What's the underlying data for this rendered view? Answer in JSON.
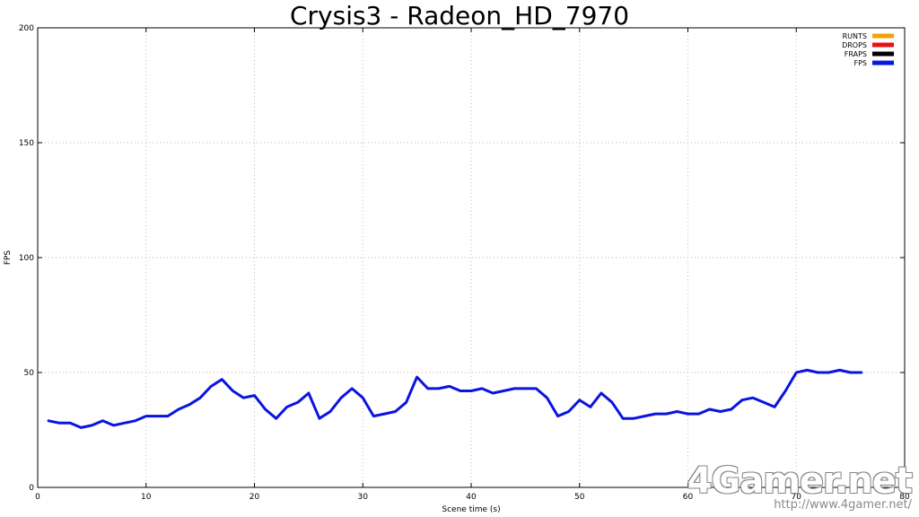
{
  "chart_data": {
    "type": "line",
    "title": "Crysis3 - Radeon_HD_7970",
    "xlabel": "Scene time (s)",
    "ylabel": "FPS",
    "xlim": [
      0,
      80
    ],
    "ylim": [
      0,
      200
    ],
    "x_ticks": [
      0,
      10,
      20,
      30,
      40,
      50,
      60,
      70,
      80
    ],
    "y_ticks": [
      0,
      50,
      100,
      150,
      200
    ],
    "grid": true,
    "legend_position": "top-right",
    "legend": [
      {
        "label": "RUNTS",
        "color": "#f5a000"
      },
      {
        "label": "DROPS",
        "color": "#e81010"
      },
      {
        "label": "FRAPS",
        "color": "#000000"
      },
      {
        "label": "FPS",
        "color": "#0a14e0"
      }
    ],
    "series": [
      {
        "name": "FPS",
        "color": "#0a14e0",
        "x": [
          1,
          2,
          3,
          4,
          5,
          6,
          7,
          8,
          9,
          10,
          11,
          12,
          13,
          14,
          15,
          16,
          17,
          18,
          19,
          20,
          21,
          22,
          23,
          24,
          25,
          26,
          27,
          28,
          29,
          30,
          31,
          32,
          33,
          34,
          35,
          36,
          37,
          38,
          39,
          40,
          41,
          42,
          43,
          44,
          45,
          46,
          47,
          48,
          49,
          50,
          51,
          52,
          53,
          54,
          55,
          56,
          57,
          58,
          59,
          60,
          61,
          62,
          63,
          64,
          65,
          66,
          67,
          68,
          69,
          70,
          71,
          72,
          73,
          74,
          75,
          76
        ],
        "y": [
          29,
          28,
          28,
          26,
          27,
          29,
          27,
          28,
          29,
          31,
          31,
          31,
          34,
          36,
          39,
          44,
          47,
          42,
          39,
          40,
          34,
          30,
          35,
          37,
          41,
          30,
          33,
          39,
          43,
          39,
          31,
          32,
          33,
          37,
          48,
          43,
          43,
          44,
          42,
          42,
          43,
          41,
          42,
          43,
          43,
          43,
          39,
          31,
          33,
          38,
          35,
          41,
          37,
          30,
          30,
          31,
          32,
          32,
          33,
          32,
          32,
          34,
          33,
          34,
          38,
          39,
          37,
          35,
          42,
          50,
          51,
          50,
          50,
          51,
          50,
          50
        ]
      }
    ]
  },
  "watermark": {
    "logo": "4Gamer.net",
    "url": "http://www.4gamer.net/"
  }
}
